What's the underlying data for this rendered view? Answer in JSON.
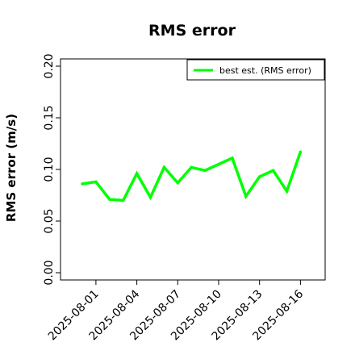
{
  "chart_data": {
    "type": "line",
    "title": "RMS error",
    "xlabel": "",
    "ylabel": "RMS error (m/s)",
    "ylim": [
      0.0,
      0.2
    ],
    "yticks": [
      "0.00",
      "0.05",
      "0.10",
      "0.15",
      "0.20"
    ],
    "ytick_values": [
      0.0,
      0.05,
      0.1,
      0.15,
      0.2
    ],
    "x": [
      "2025-07-31",
      "2025-08-01",
      "2025-08-02",
      "2025-08-03",
      "2025-08-04",
      "2025-08-05",
      "2025-08-06",
      "2025-08-07",
      "2025-08-08",
      "2025-08-09",
      "2025-08-10",
      "2025-08-11",
      "2025-08-12",
      "2025-08-13",
      "2025-08-14",
      "2025-08-15",
      "2025-08-16"
    ],
    "xticks": [
      "2025-08-01",
      "2025-08-04",
      "2025-08-07",
      "2025-08-10",
      "2025-08-13",
      "2025-08-16"
    ],
    "highlighted_xtick": "2025-08-07",
    "highlight_color": "#228B22",
    "series": [
      {
        "name": "best est. (RMS error)",
        "color": "#00ff00",
        "values": [
          0.086,
          0.088,
          0.071,
          0.07,
          0.096,
          0.073,
          0.102,
          0.087,
          0.102,
          0.099,
          0.105,
          0.111,
          0.074,
          0.093,
          0.099,
          0.079,
          0.117
        ]
      }
    ],
    "legend_position": "top-right",
    "grid": false
  }
}
